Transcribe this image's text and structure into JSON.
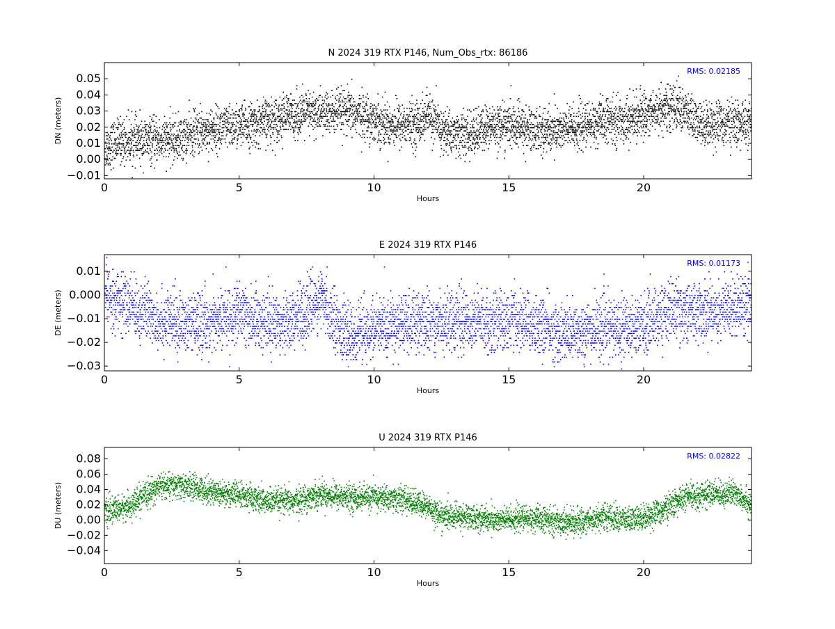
{
  "chart_data": [
    {
      "type": "scatter",
      "title": "N 2024 319 RTX  P146, Num_Obs_rtx: 86186",
      "xlabel": "Hours",
      "ylabel": "DN (meters)",
      "xlim": [
        0,
        24
      ],
      "ylim": [
        -0.012,
        0.06
      ],
      "xticks": [
        0,
        5,
        10,
        15,
        20
      ],
      "xtick_labels": [
        "0",
        "5",
        "10",
        "15",
        "20"
      ],
      "yticks": [
        -0.01,
        0.0,
        0.01,
        0.02,
        0.03,
        0.04,
        0.05
      ],
      "ytick_labels": [
        "−0.01",
        "0.00",
        "0.01",
        "0.02",
        "0.03",
        "0.04",
        "0.05"
      ],
      "color": "#000000",
      "annotation": "RMS:  0.02185",
      "annotation_color": "#0000ff",
      "quantization": 0.001,
      "trend": {
        "x": [
          0,
          0.5,
          1,
          2,
          2.8,
          3.5,
          4.5,
          5.5,
          7,
          8,
          9,
          9.5,
          10.5,
          11.5,
          12,
          12.5,
          13.5,
          14.5,
          15.5,
          16.5,
          17.5,
          18.5,
          19.5,
          20.5,
          21.3,
          22,
          23,
          24
        ],
        "y": [
          0.008,
          0.012,
          0.012,
          0.012,
          0.013,
          0.018,
          0.02,
          0.022,
          0.028,
          0.029,
          0.029,
          0.028,
          0.022,
          0.022,
          0.028,
          0.018,
          0.015,
          0.022,
          0.02,
          0.018,
          0.02,
          0.024,
          0.025,
          0.031,
          0.033,
          0.022,
          0.023,
          0.022
        ]
      },
      "spread": 0.009,
      "grid": false
    },
    {
      "type": "scatter",
      "title": "E 2024 319 RTX  P146",
      "xlabel": "Hours",
      "ylabel": "DE (meters)",
      "xlim": [
        0,
        24
      ],
      "ylim": [
        -0.032,
        0.017
      ],
      "xticks": [
        0,
        5,
        10,
        15,
        20
      ],
      "xtick_labels": [
        "0",
        "5",
        "10",
        "15",
        "20"
      ],
      "yticks": [
        -0.03,
        -0.02,
        -0.01,
        0.0,
        0.01
      ],
      "ytick_labels": [
        "−0.03",
        "−0.02",
        "−0.01",
        "0.000",
        "0.01"
      ],
      "color": "#0000ff",
      "annotation": "RMS:  0.01173",
      "annotation_color": "#0000ff",
      "quantization": 0.001,
      "trend": {
        "x": [
          0,
          1,
          2,
          3,
          4,
          5,
          6,
          7,
          8,
          9,
          10,
          11,
          12,
          13,
          14,
          15,
          16,
          17,
          18,
          19,
          20,
          21,
          22,
          23,
          24
        ],
        "y": [
          0.0,
          -0.005,
          -0.01,
          -0.012,
          -0.011,
          -0.008,
          -0.011,
          -0.01,
          -0.002,
          -0.017,
          -0.014,
          -0.012,
          -0.011,
          -0.01,
          -0.011,
          -0.01,
          -0.012,
          -0.016,
          -0.014,
          -0.013,
          -0.012,
          -0.006,
          -0.007,
          -0.006,
          -0.002
        ]
      },
      "spread": 0.008,
      "grid": false
    },
    {
      "type": "scatter",
      "title": "U 2024 319 RTX  P146",
      "xlabel": "Hours",
      "ylabel": "DU (meters)",
      "xlim": [
        0,
        24
      ],
      "ylim": [
        -0.057,
        0.095
      ],
      "xticks": [
        0,
        5,
        10,
        15,
        20
      ],
      "xtick_labels": [
        "0",
        "5",
        "10",
        "15",
        "20"
      ],
      "yticks": [
        -0.04,
        -0.02,
        0.0,
        0.02,
        0.04,
        0.06,
        0.08
      ],
      "ytick_labels": [
        "−0.04",
        "−0.02",
        "0.00",
        "0.02",
        "0.04",
        "0.06",
        "0.08"
      ],
      "color": "#008000",
      "annotation": "RMS:  0.02822",
      "annotation_color": "#0000ff",
      "quantization": 0,
      "trend": {
        "x": [
          0,
          1,
          2,
          3,
          4,
          5,
          6,
          7,
          8,
          9,
          10,
          11,
          12,
          12.5,
          13.5,
          14.5,
          15.5,
          16.5,
          17.5,
          18.5,
          19.5,
          20.5,
          21.5,
          22.5,
          23.5,
          24
        ],
        "y": [
          0.01,
          0.02,
          0.045,
          0.045,
          0.038,
          0.033,
          0.025,
          0.025,
          0.035,
          0.03,
          0.03,
          0.028,
          0.018,
          0.005,
          0.005,
          0.0,
          0.003,
          0.0,
          -0.003,
          0.005,
          0.0,
          0.01,
          0.03,
          0.035,
          0.035,
          0.02
        ]
      },
      "spread": 0.011,
      "grid": false
    }
  ]
}
